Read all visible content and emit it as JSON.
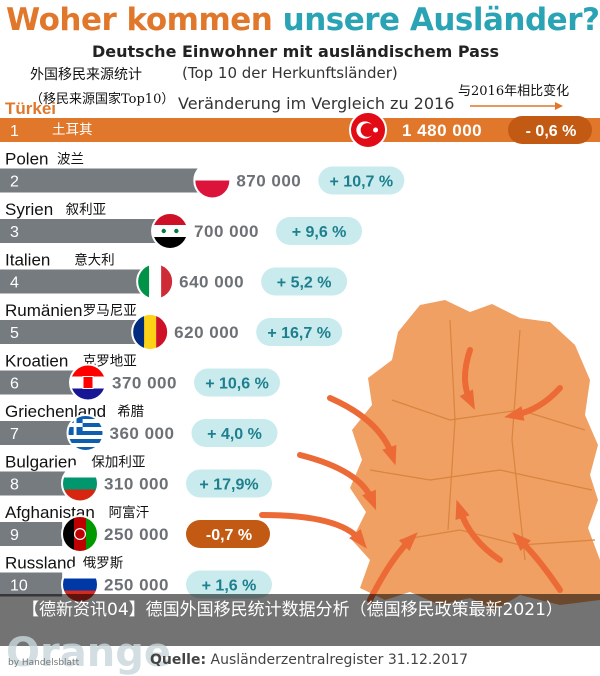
{
  "header": {
    "title_part1": "Woher kommen ",
    "title_part2": "unsere Ausländer?",
    "subtitle": "Deutsche Einwohner mit ausländischem Pass",
    "subtitle_line2": "(Top 10 der Herkunftsländer)",
    "subtitle_line3": "Veränderung im Vergleich zu 2016"
  },
  "annotations": {
    "cn_stats": "外国移民来源统计",
    "cn_top10": "（移民来源国家Top10）",
    "cn_change": "与2016年相比变化"
  },
  "colors": {
    "accent_orange": "#e0772a",
    "accent_teal": "#2aa3b4",
    "bar_gray": "#767b80",
    "positive_badge": "#c9ebee",
    "negative_badge": "#c25a14",
    "map_orange": "#f0a062",
    "arrow_orange": "#ec6a36"
  },
  "chart_data": {
    "type": "bar",
    "title": "Deutsche Einwohner mit ausländischem Pass",
    "categories": [
      "Türkei",
      "Polen",
      "Syrien",
      "Italien",
      "Rumänien",
      "Kroatien",
      "Griechenland",
      "Bulgarien",
      "Afghanistan",
      "Russland"
    ],
    "categories_cn": [
      "土耳其",
      "波兰",
      "叙利亚",
      "意大利",
      "罗马尼亚",
      "克罗地亚",
      "希腊",
      "保加利亚",
      "阿富汗",
      "俄罗斯"
    ],
    "ranks": [
      "1",
      "2",
      "3",
      "4",
      "5",
      "6",
      "7",
      "8",
      "9",
      "10"
    ],
    "values": [
      1480000,
      870000,
      700000,
      640000,
      620000,
      370000,
      360000,
      310000,
      250000,
      250000
    ],
    "value_labels": [
      "1 480 000",
      "870 000",
      "700 000",
      "640 000",
      "620 000",
      "370 000",
      "360 000",
      "310 000",
      "250 000",
      "250 000"
    ],
    "change_labels": [
      "- 0,6 %",
      "+ 10,7 %",
      "+ 9,6 %",
      "+ 5,2 %",
      "+ 16,7 %",
      "+ 10,6 %",
      "+ 4,0 %",
      "+ 17,9%",
      "-0,7 %",
      "+ 1,6 %"
    ],
    "change_values": [
      -0.6,
      10.7,
      9.6,
      5.2,
      16.7,
      10.6,
      4.0,
      17.9,
      -0.7,
      1.6
    ],
    "flag_icons": [
      "turkey-flag-icon",
      "poland-flag-icon",
      "syria-flag-icon",
      "italy-flag-icon",
      "romania-flag-icon",
      "croatia-flag-icon",
      "greece-flag-icon",
      "bulgaria-flag-icon",
      "afghanistan-flag-icon",
      "russia-flag-icon"
    ]
  },
  "caption": {
    "text": "【德新资讯04】德国外国移民统计数据分析（德国移民政策最新2021）"
  },
  "footer": {
    "source_label": "Quelle:",
    "source_text": " Ausländerzentralregister 31.12.2017",
    "logo_text": "Orange",
    "logo_sub": "by Handelsblatt"
  }
}
